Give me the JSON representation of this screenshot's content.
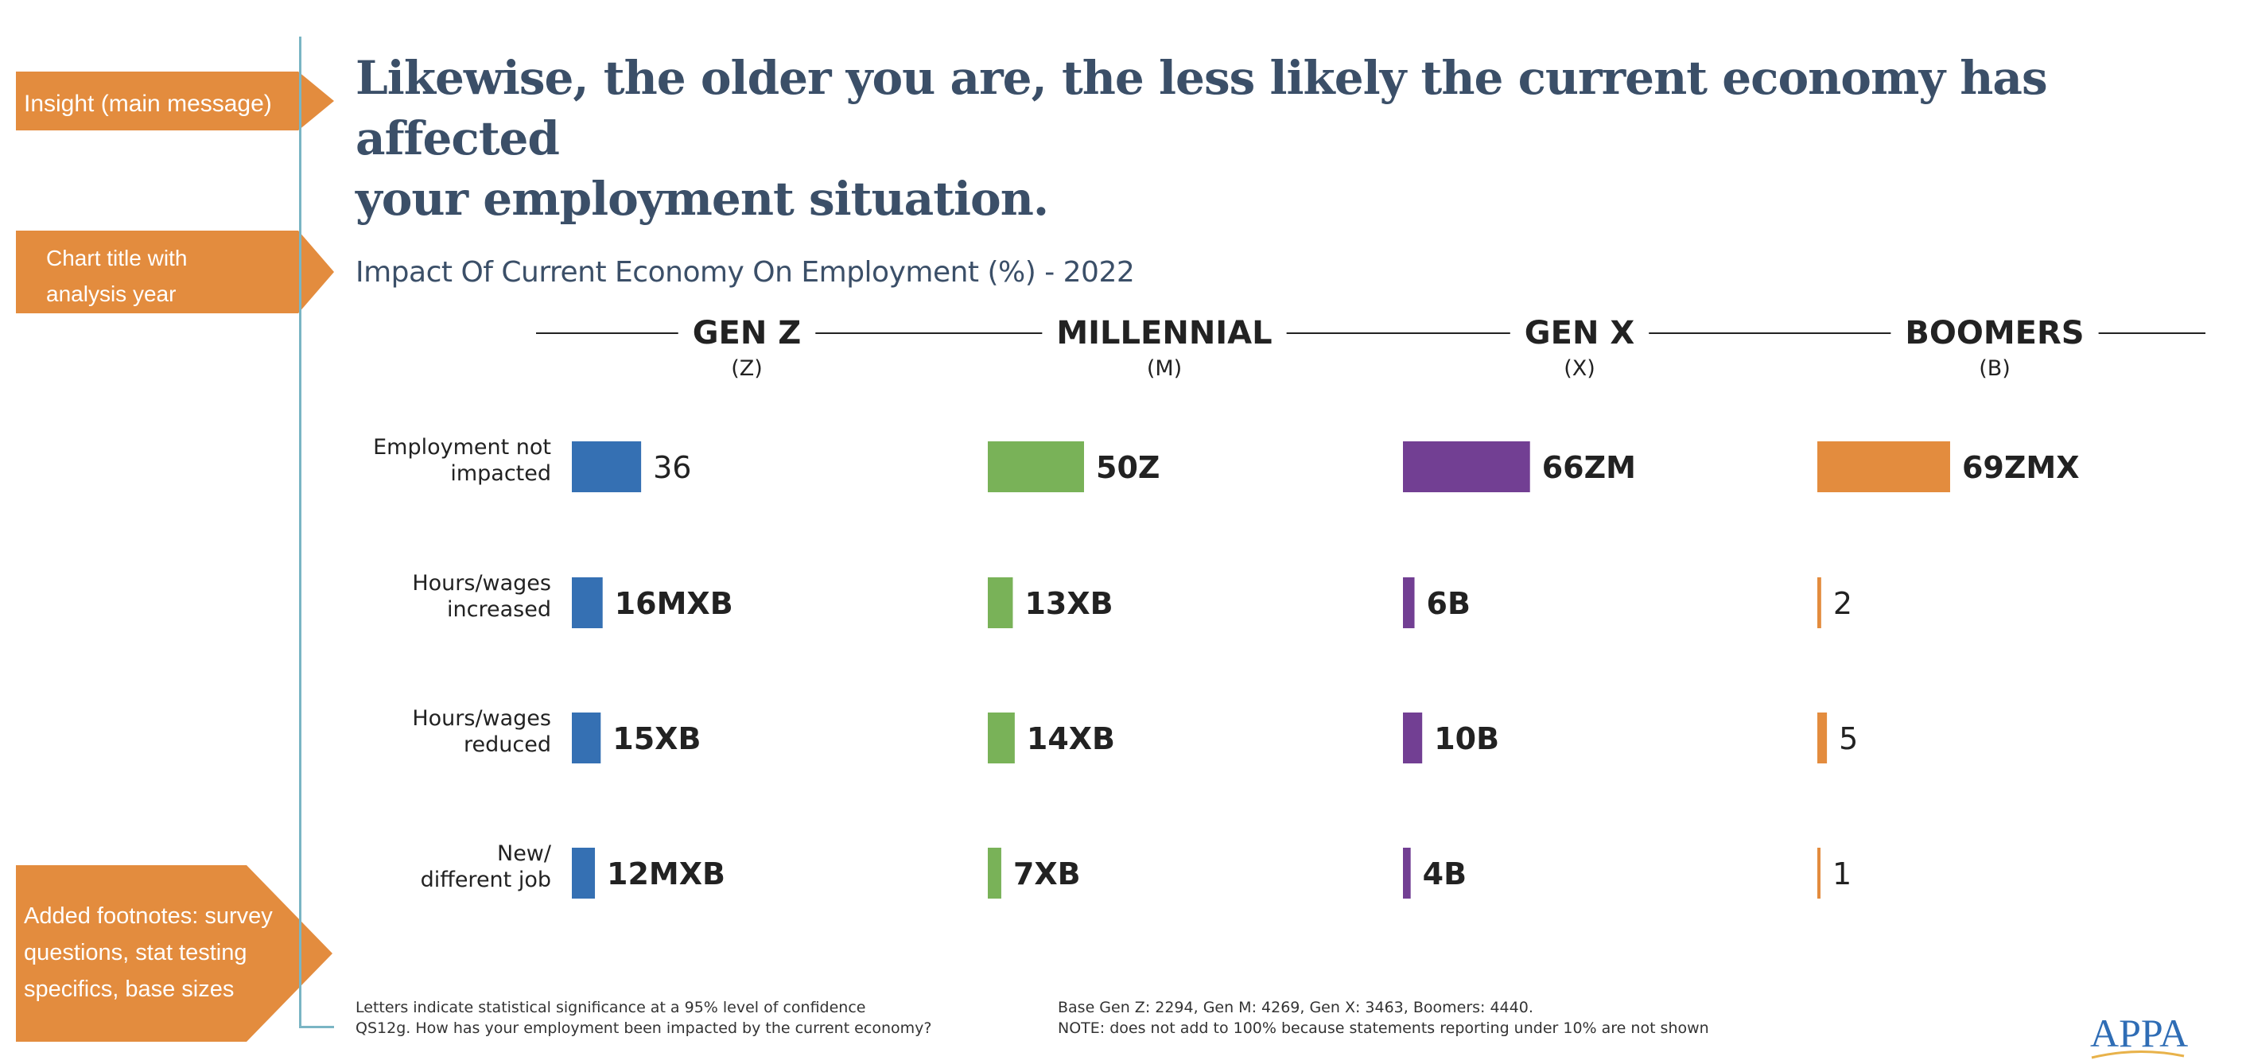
{
  "callouts": {
    "insight": "Insight (main message)",
    "chart_title_line1": "Chart title with",
    "chart_title_line2": "analysis year",
    "footnotes_line1": "Added footnotes: survey",
    "footnotes_line2": "questions, stat testing",
    "footnotes_line3": "specifics, base sizes"
  },
  "headline": {
    "line1": "Likewise, the older you are, the less likely the current economy has affected",
    "line2": "your employment situation."
  },
  "colors": {
    "accent_orange": "#e38c3e",
    "headline": "#3b4f68",
    "divider": "#7ab5c4"
  },
  "chart_data": {
    "type": "bar",
    "title": "Impact Of Current Economy On Employment (%) - 2022",
    "categories": [
      [
        "Employment not",
        "impacted"
      ],
      [
        "Hours/wages",
        "increased"
      ],
      [
        "Hours/wages",
        "reduced"
      ],
      [
        "New/",
        "different job"
      ]
    ],
    "xlim": [
      0,
      100
    ],
    "series": [
      {
        "name": "GEN Z",
        "letter": "Z",
        "color": "#3570b3",
        "values": [
          36,
          16,
          15,
          12
        ],
        "labels": [
          "36",
          "16MXB",
          "15XB",
          "12MXB"
        ],
        "significant": [
          false,
          true,
          true,
          true
        ]
      },
      {
        "name": "MILLENNIAL",
        "letter": "M",
        "color": "#79b258",
        "values": [
          50,
          13,
          14,
          7
        ],
        "labels": [
          "50Z",
          "13XB",
          "14XB",
          "7XB"
        ],
        "significant": [
          true,
          true,
          true,
          true
        ]
      },
      {
        "name": "GEN X",
        "letter": "X",
        "color": "#723f93",
        "values": [
          66,
          6,
          10,
          4
        ],
        "labels": [
          "66ZM",
          "6B",
          "10B",
          "4B"
        ],
        "significant": [
          true,
          true,
          true,
          true
        ]
      },
      {
        "name": "BOOMERS",
        "letter": "B",
        "color": "#e38c3e",
        "values": [
          69,
          2,
          5,
          1
        ],
        "labels": [
          "69ZMX",
          "2",
          "5",
          "1"
        ],
        "significant": [
          true,
          false,
          false,
          false
        ]
      }
    ]
  },
  "footnotes": {
    "left_line1": "Letters indicate statistical significance at a 95% level of confidence",
    "left_line2": "QS12g. How has your employment been impacted by the current economy?",
    "right_line1": "Base Gen Z: 2294, Gen M: 4269, Gen X: 3463, Boomers: 4440.",
    "right_line2": "NOTE: does not add to 100% because statements reporting under 10% are not shown"
  },
  "logo": {
    "text": "APPA"
  }
}
